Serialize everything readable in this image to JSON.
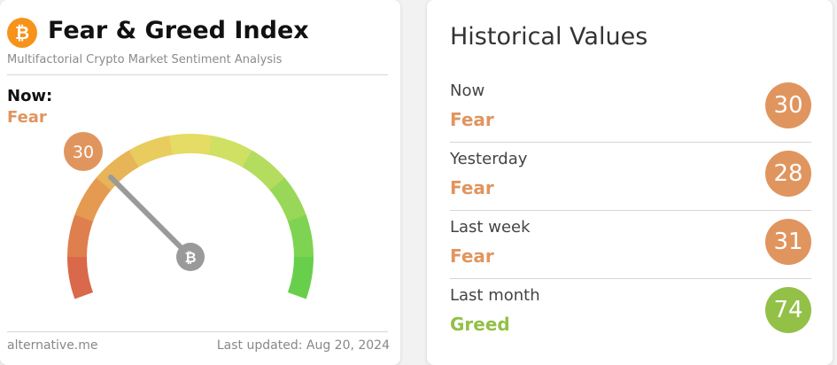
{
  "header": {
    "title": "Fear & Greed Index",
    "subtitle": "Multifactorial Crypto Market Sentiment Analysis"
  },
  "now": {
    "label": "Now:",
    "classification": "Fear",
    "value": 30
  },
  "footer": {
    "source": "alternative.me",
    "updated": "Last updated: Aug 20, 2024"
  },
  "historical": {
    "title": "Historical Values",
    "rows": [
      {
        "label": "Now",
        "classification": "Fear",
        "value": 30
      },
      {
        "label": "Yesterday",
        "classification": "Fear",
        "value": 28
      },
      {
        "label": "Last week",
        "classification": "Fear",
        "value": 31
      },
      {
        "label": "Last month",
        "classification": "Greed",
        "value": 74
      }
    ]
  }
}
